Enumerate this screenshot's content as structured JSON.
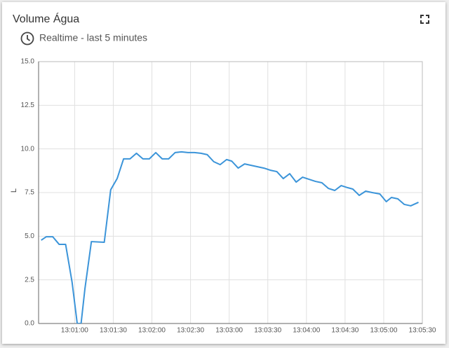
{
  "chart_data": {
    "type": "line",
    "title": "Volume Água",
    "subtitle": "Realtime - last 5 minutes",
    "y_label": "L",
    "x": [
      "13:00:34",
      "13:00:38",
      "13:00:43",
      "13:00:48",
      "13:00:53",
      "13:00:58",
      "13:01:02",
      "13:01:05",
      "13:01:08",
      "13:01:13",
      "13:01:23",
      "13:01:28",
      "13:01:33",
      "13:01:38",
      "13:01:43",
      "13:01:48",
      "13:01:53",
      "13:01:58",
      "13:02:03",
      "13:02:08",
      "13:02:13",
      "13:02:18",
      "13:02:23",
      "13:02:28",
      "13:02:33",
      "13:02:38",
      "13:02:43",
      "13:02:48",
      "13:02:53",
      "13:02:58",
      "13:03:02",
      "13:03:07",
      "13:03:12",
      "13:03:17",
      "13:03:22",
      "13:03:27",
      "13:03:32",
      "13:03:37",
      "13:03:42",
      "13:03:47",
      "13:03:52",
      "13:03:57",
      "13:04:02",
      "13:04:07",
      "13:04:12",
      "13:04:17",
      "13:04:22",
      "13:04:27",
      "13:04:32",
      "13:04:36",
      "13:04:41",
      "13:04:46",
      "13:04:51",
      "13:04:57",
      "13:05:02",
      "13:05:06",
      "13:05:11",
      "13:05:16",
      "13:05:21",
      "13:05:27"
    ],
    "series": [
      {
        "color": "#3b94d9",
        "values": [
          4.77,
          4.97,
          4.97,
          4.53,
          4.53,
          2.37,
          0,
          0,
          2.0,
          4.69,
          4.65,
          7.66,
          8.3,
          9.43,
          9.43,
          9.75,
          9.43,
          9.43,
          9.79,
          9.43,
          9.43,
          9.79,
          9.83,
          9.79,
          9.79,
          9.75,
          9.67,
          9.27,
          9.1,
          9.39,
          9.3,
          8.9,
          9.14,
          9.06,
          8.98,
          8.9,
          8.78,
          8.7,
          8.3,
          8.58,
          8.1,
          8.38,
          8.26,
          8.14,
          8.06,
          7.74,
          7.62,
          7.9,
          7.78,
          7.7,
          7.34,
          7.58,
          7.5,
          7.42,
          6.98,
          7.22,
          7.14,
          6.82,
          6.74,
          6.94
        ]
      }
    ],
    "xlim": [
      "13:00:32",
      "13:05:30"
    ],
    "xticks": [
      "13:01:00",
      "13:01:30",
      "13:02:00",
      "13:02:30",
      "13:03:00",
      "13:03:30",
      "13:04:00",
      "13:04:30",
      "13:05:00",
      "13:05:30"
    ],
    "ylim": [
      0,
      15
    ],
    "yticks": [
      {
        "value": 0,
        "label": "0.0"
      },
      2.5,
      {
        "value": 5,
        "label": "5.0"
      },
      7.5,
      {
        "value": 10,
        "label": "10.0"
      },
      12.5,
      {
        "value": 15,
        "label": "15.0"
      }
    ],
    "grid": true
  }
}
